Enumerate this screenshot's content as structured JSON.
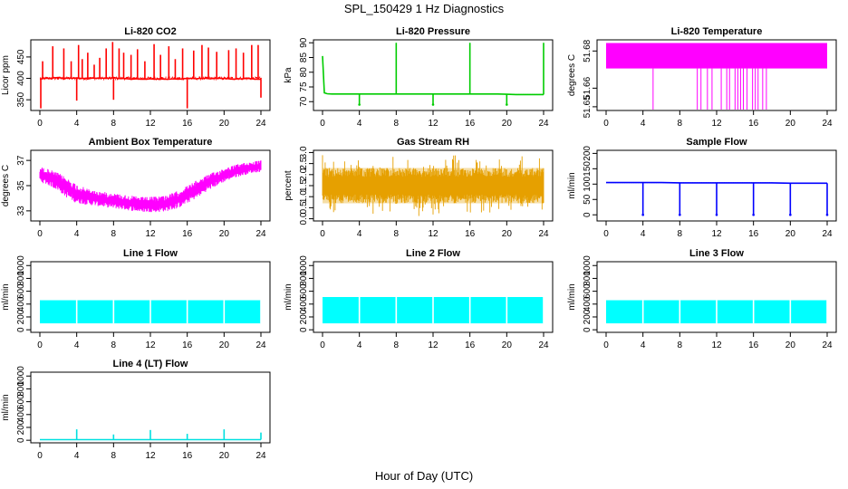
{
  "figure": {
    "title": "SPL_150429  1 Hz Diagnostics",
    "xlabel": "Hour of Day (UTC)"
  },
  "chart_data": [
    {
      "type": "line",
      "title": "Li-820 CO2",
      "ylabel": "Licor ppm",
      "color": "#ff0000",
      "xlim": [
        0,
        24
      ],
      "ylim": [
        325,
        490
      ],
      "xticks": [
        0,
        4,
        8,
        12,
        16,
        20,
        24
      ],
      "yticks": [
        350,
        400,
        450
      ],
      "series": [
        {
          "x": [
            0,
            0.5,
            1,
            1.5,
            2,
            2.5,
            3,
            3.5,
            4,
            4.5,
            5,
            5.5,
            6,
            6.5,
            7,
            7.5,
            8,
            8.5,
            9,
            9.5,
            10,
            10.5,
            11,
            11.5,
            12,
            12.5,
            13,
            13.5,
            14,
            14.5,
            15,
            15.5,
            16,
            16.5,
            17,
            17.5,
            18,
            18.5,
            19,
            19.5,
            20,
            20.5,
            21,
            21.5,
            22,
            22.5,
            23,
            23.5,
            24
          ],
          "y": [
            398,
            400,
            400,
            401,
            402,
            400,
            401,
            400,
            401,
            400,
            400,
            401,
            400,
            401,
            400,
            400,
            402,
            400,
            400,
            399,
            398,
            399,
            398,
            398,
            399,
            398,
            399,
            398,
            398,
            399,
            398,
            399,
            400,
            400,
            399,
            400,
            400,
            399,
            400,
            400,
            400,
            399,
            398,
            399,
            399,
            400,
            399,
            398,
            398
          ]
        }
      ],
      "spikes": {
        "up": [
          0.3,
          1.4,
          2.6,
          3.4,
          4.2,
          4.6,
          5.2,
          5.9,
          6.5,
          7.2,
          7.9,
          8.6,
          9.1,
          9.9,
          10.6,
          11.4,
          12.4,
          13.1,
          14.0,
          14.7,
          15.5,
          16.7,
          17.6,
          18.3,
          19.2,
          20.5,
          21.3,
          22.1,
          23.0,
          23.7
        ],
        "up_values": [
          440,
          475,
          470,
          440,
          478,
          445,
          460,
          432,
          448,
          470,
          485,
          470,
          460,
          455,
          468,
          440,
          480,
          455,
          475,
          445,
          470,
          465,
          478,
          472,
          462,
          466,
          470,
          460,
          478,
          478
        ],
        "down": [
          0.1,
          4.0,
          8.0,
          16.0,
          24.0
        ],
        "down_values": [
          330,
          348,
          350,
          330,
          355
        ]
      }
    },
    {
      "type": "line",
      "title": "Li-820 Pressure",
      "ylabel": "kPa",
      "color": "#00cc00",
      "xlim": [
        0,
        24
      ],
      "ylim": [
        67,
        91
      ],
      "xticks": [
        0,
        4,
        8,
        12,
        16,
        20,
        24
      ],
      "yticks": [
        70,
        75,
        80,
        85,
        90
      ],
      "series": [
        {
          "x": [
            0,
            0.2,
            0.5,
            1,
            2,
            3,
            4,
            5,
            6,
            7,
            8,
            9,
            10,
            11,
            12,
            13,
            14,
            15,
            16,
            17,
            18,
            19,
            20,
            21,
            22,
            23,
            24
          ],
          "y": [
            85.5,
            73,
            72.7,
            72.6,
            72.6,
            72.6,
            72.6,
            72.6,
            72.6,
            72.6,
            72.6,
            72.6,
            72.6,
            72.6,
            72.6,
            72.6,
            72.6,
            72.6,
            72.6,
            72.6,
            72.6,
            72.6,
            72.5,
            72.4,
            72.4,
            72.4,
            72.4
          ]
        }
      ],
      "spikes": {
        "up": [
          8,
          16,
          24
        ],
        "up_values": [
          90,
          90,
          90
        ],
        "down": [
          4,
          12,
          20
        ],
        "down_values": [
          69,
          69,
          69
        ]
      }
    },
    {
      "type": "area",
      "title": "Li-820 Temperature",
      "ylabel": "degrees C",
      "color": "#ff00ff",
      "xlim": [
        0,
        24
      ],
      "ylim": [
        51.648,
        51.686
      ],
      "xticks": [
        0,
        4,
        8,
        12,
        16,
        20,
        24
      ],
      "yticks": [
        51.65,
        51.66,
        51.68
      ],
      "band": {
        "low": 51.6706,
        "high": 51.6843
      },
      "dips_at": [
        5.1,
        9.9,
        10.3,
        11.0,
        11.5,
        12.5,
        13.1,
        13.4,
        14.0,
        14.3,
        14.6,
        14.9,
        15.3,
        15.9,
        16.2,
        16.5,
        17.0,
        17.4
      ]
    },
    {
      "type": "area",
      "title": "Ambient Box Temperature",
      "ylabel": "degrees C",
      "color": "#ff00ff",
      "xlim": [
        0,
        24
      ],
      "ylim": [
        32.2,
        37.8
      ],
      "xticks": [
        0,
        4,
        8,
        12,
        16,
        20,
        24
      ],
      "yticks": [
        33,
        35,
        37
      ],
      "series": [
        {
          "x": [
            0,
            1,
            2,
            3,
            4,
            5,
            6,
            7,
            8,
            9,
            10,
            11,
            12,
            13,
            14,
            15,
            16,
            17,
            18,
            19,
            20,
            21,
            22,
            23,
            24
          ],
          "high": [
            36.5,
            36.3,
            36.0,
            35.6,
            35.1,
            34.8,
            34.6,
            34.5,
            34.4,
            34.3,
            34.2,
            34.1,
            34.1,
            34.2,
            34.3,
            34.6,
            35.0,
            35.4,
            35.8,
            36.1,
            36.4,
            36.6,
            36.8,
            36.9,
            37.0
          ],
          "low": [
            35.3,
            35.0,
            34.6,
            34.0,
            33.6,
            33.5,
            33.4,
            33.3,
            33.2,
            33.1,
            33.0,
            32.9,
            32.9,
            32.9,
            33.0,
            33.2,
            33.6,
            34.0,
            34.5,
            34.9,
            35.3,
            35.6,
            35.8,
            36.0,
            36.1
          ]
        }
      ]
    },
    {
      "type": "area",
      "title": "Gas Stream RH",
      "ylabel": "percent",
      "color": "#e6a000",
      "xlim": [
        0,
        24
      ],
      "ylim": [
        -0.1,
        3.1
      ],
      "xticks": [
        0,
        4,
        8,
        12,
        16,
        20,
        24
      ],
      "yticks": [
        0.0,
        0.5,
        1.0,
        1.5,
        2.0,
        2.5,
        3.0
      ],
      "band": {
        "low": 0.7,
        "high": 2.3
      },
      "extremes": {
        "min": 0.0,
        "max": 3.0
      }
    },
    {
      "type": "line",
      "title": "Sample Flow",
      "ylabel": "ml/min",
      "color": "#0000ff",
      "xlim": [
        0,
        24
      ],
      "ylim": [
        -20,
        210
      ],
      "xticks": [
        0,
        4,
        8,
        12,
        16,
        20,
        24
      ],
      "yticks": [
        0,
        50,
        100,
        150,
        200
      ],
      "series": [
        {
          "x": [
            0,
            2,
            4,
            6,
            8,
            10,
            12,
            14,
            16,
            18,
            20,
            22,
            24
          ],
          "y": [
            105,
            105,
            105,
            105,
            104,
            104,
            104,
            104,
            104,
            104,
            103,
            103,
            103
          ]
        }
      ],
      "spikes": {
        "down": [
          4,
          8,
          12,
          16,
          20,
          24
        ],
        "down_values": [
          0,
          0,
          0,
          0,
          0,
          0
        ]
      }
    },
    {
      "type": "area",
      "title": "Line 1 Flow",
      "ylabel": "ml/min",
      "color": "#00ffff",
      "xlim": [
        0,
        24
      ],
      "ylim": [
        -40,
        1060
      ],
      "xticks": [
        0,
        4,
        8,
        12,
        16,
        20,
        24
      ],
      "yticks": [
        0,
        200,
        400,
        600,
        800,
        1000
      ],
      "band": {
        "low": 100,
        "high": 460
      },
      "gaps_at": [
        4,
        8,
        12,
        16,
        20,
        24
      ]
    },
    {
      "type": "area",
      "title": "Line 2 Flow",
      "ylabel": "ml/min",
      "color": "#00ffff",
      "xlim": [
        0,
        24
      ],
      "ylim": [
        -40,
        1060
      ],
      "xticks": [
        0,
        4,
        8,
        12,
        16,
        20,
        24
      ],
      "yticks": [
        0,
        200,
        400,
        600,
        800,
        1000
      ],
      "band": {
        "low": 100,
        "high": 510
      },
      "gaps_at": [
        4,
        8,
        12,
        16,
        20,
        24
      ]
    },
    {
      "type": "area",
      "title": "Line 3 Flow",
      "ylabel": "ml/min",
      "color": "#00ffff",
      "xlim": [
        0,
        24
      ],
      "ylim": [
        -40,
        1060
      ],
      "xticks": [
        0,
        4,
        8,
        12,
        16,
        20,
        24
      ],
      "yticks": [
        0,
        200,
        400,
        600,
        800,
        1000
      ],
      "band": {
        "low": 100,
        "high": 460
      },
      "gaps_at": [
        4,
        8,
        12,
        16,
        20,
        24
      ]
    },
    {
      "type": "line",
      "title": "Line 4 (LT) Flow",
      "ylabel": "ml/min",
      "color": "#00e0e0",
      "xlim": [
        0,
        24
      ],
      "ylim": [
        -40,
        1060
      ],
      "xticks": [
        0,
        4,
        8,
        12,
        16,
        20,
        24
      ],
      "yticks": [
        0,
        200,
        400,
        600,
        800,
        1000
      ],
      "series": [
        {
          "x": [
            0,
            4,
            8,
            12,
            16,
            20,
            24
          ],
          "y": [
            10,
            10,
            10,
            10,
            10,
            10,
            10
          ]
        }
      ],
      "spikes": {
        "up": [
          4,
          8,
          12,
          16,
          20,
          24
        ],
        "up_values": [
          170,
          90,
          160,
          100,
          170,
          120
        ]
      }
    }
  ]
}
